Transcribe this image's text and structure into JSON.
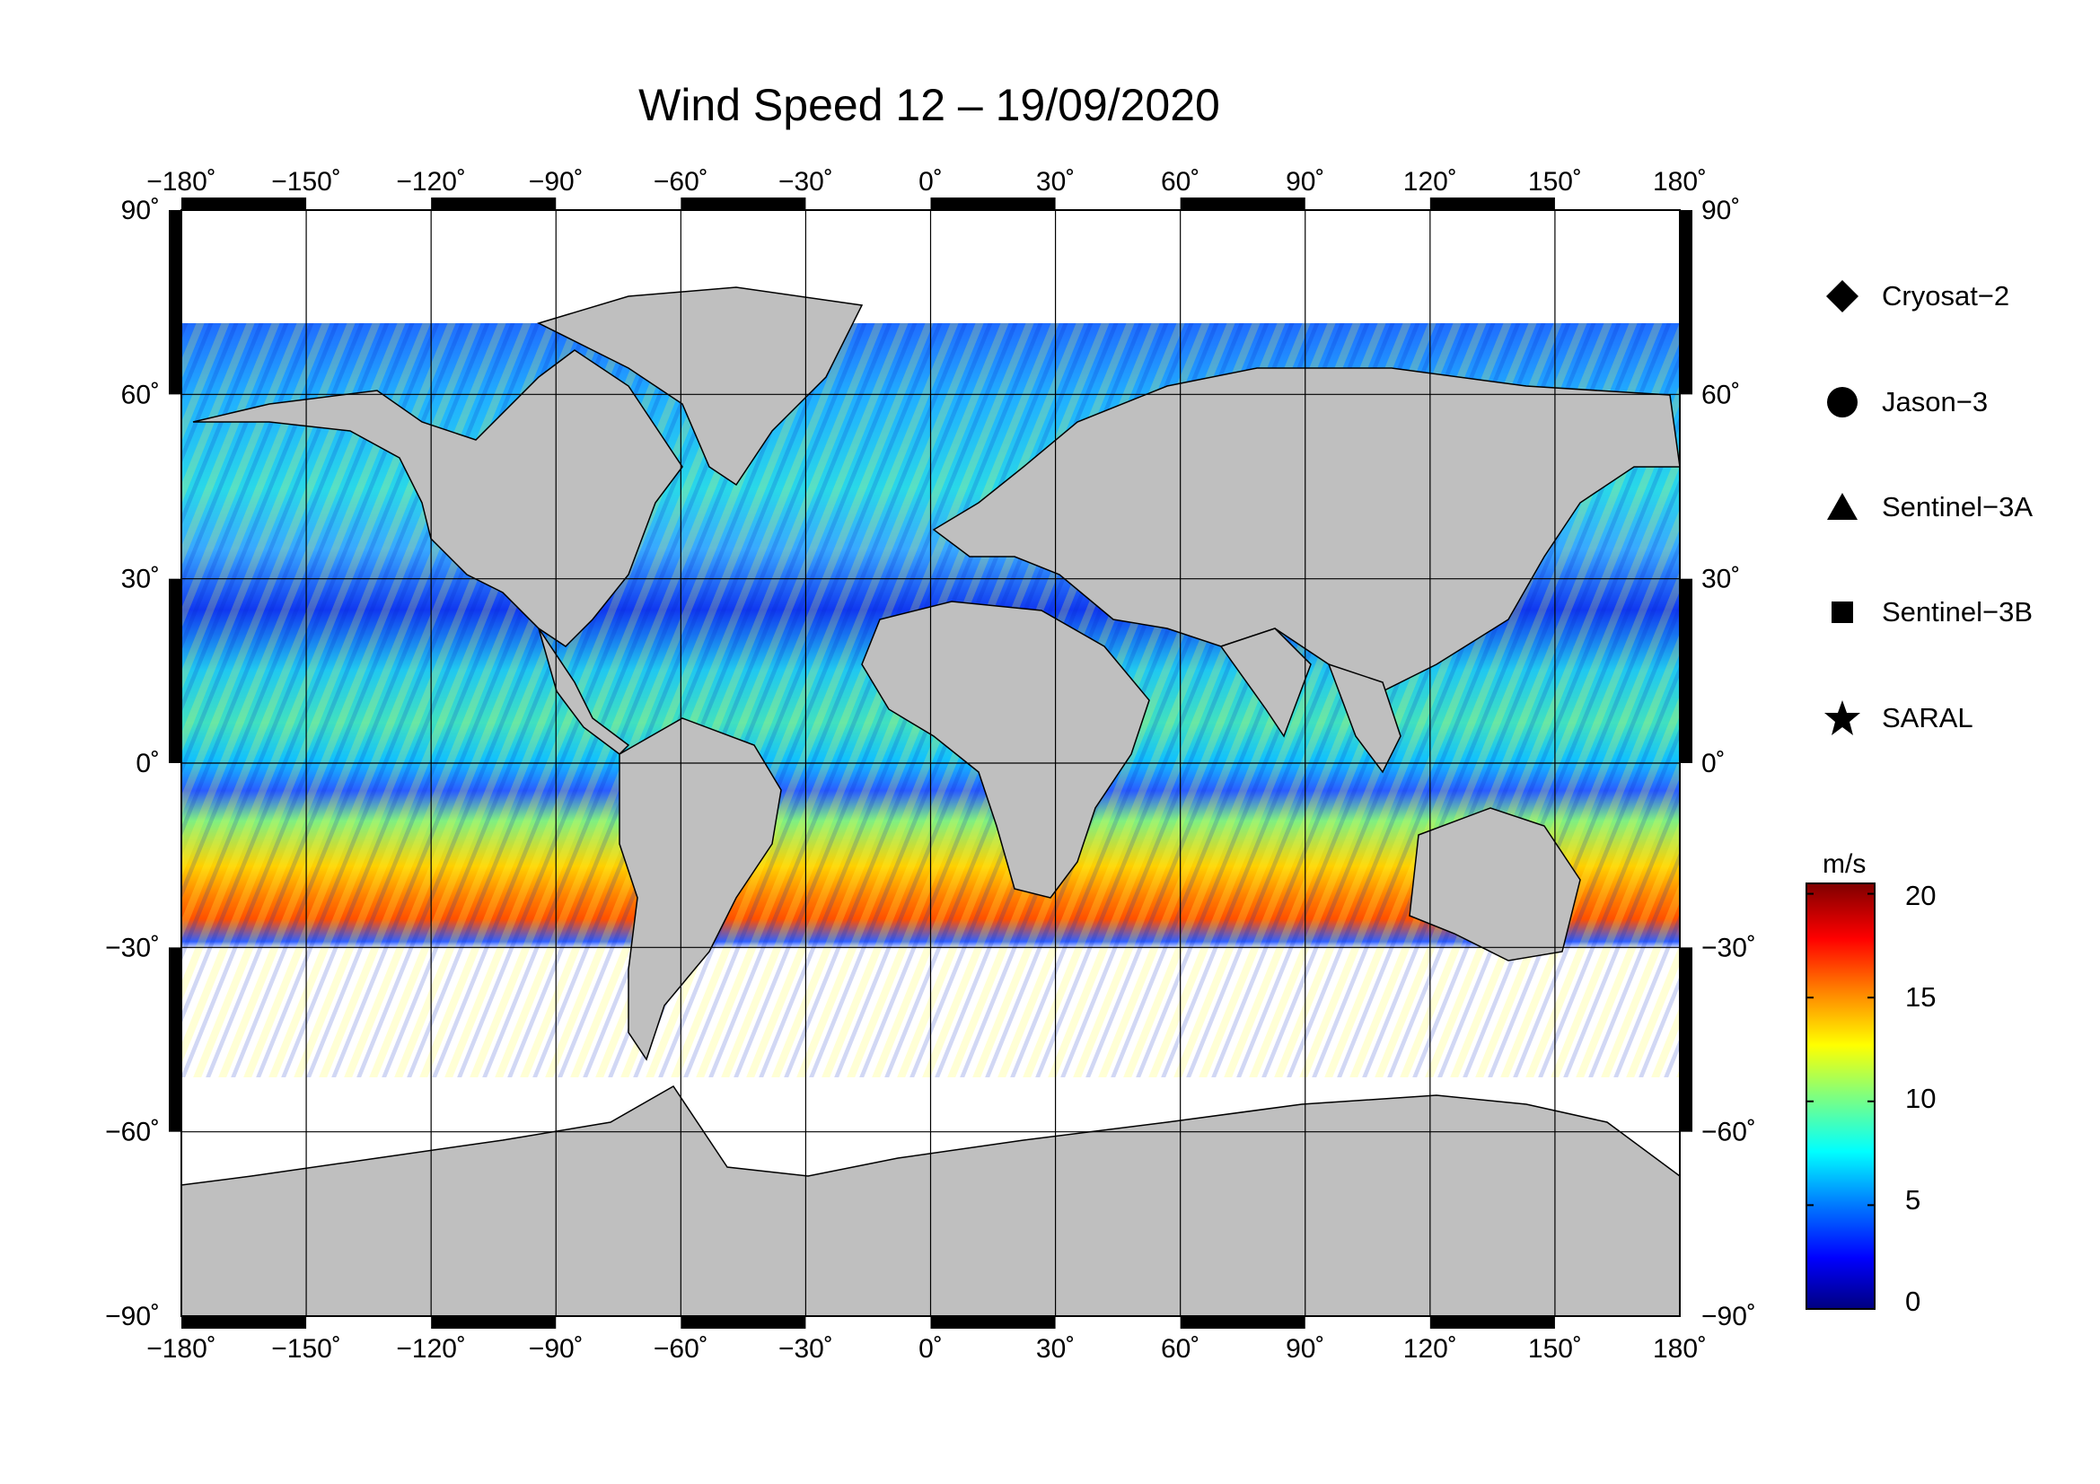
{
  "title": "Wind Speed 12 – 19/09/2020",
  "lon_ticks": [
    "−180˚",
    "−150˚",
    "−120˚",
    "−90˚",
    "−60˚",
    "−30˚",
    "0˚",
    "30˚",
    "60˚",
    "90˚",
    "120˚",
    "150˚",
    "180˚"
  ],
  "lat_ticks_left": [
    "90˚",
    "60˚",
    "30˚",
    "0˚",
    "−30˚",
    "−60˚",
    "−90˚"
  ],
  "lat_ticks_right": [
    "90˚",
    "60˚",
    "30˚",
    "0˚",
    "−30˚",
    "−60˚",
    "−90˚"
  ],
  "legend": {
    "items": [
      {
        "label": "Cryosat−2",
        "symbol": "diamond"
      },
      {
        "label": "Jason−3",
        "symbol": "circle"
      },
      {
        "label": "Sentinel−3A",
        "symbol": "triangle"
      },
      {
        "label": "Sentinel−3B",
        "symbol": "square"
      },
      {
        "label": "SARAL",
        "symbol": "star"
      }
    ]
  },
  "colorbar": {
    "unit": "m/s",
    "labels": [
      "20",
      "15",
      "10",
      "5",
      "0"
    ],
    "min": 0,
    "max": 20.5,
    "colors": [
      "#00007f",
      "#0000ff",
      "#007fff",
      "#00ffff",
      "#7fff7f",
      "#ffff00",
      "#ff7f00",
      "#ff0000",
      "#7f0000"
    ]
  },
  "colors": {
    "land": "#bfbfbf",
    "antarctic_ice": "#ffffff",
    "frame": "#000000"
  }
}
